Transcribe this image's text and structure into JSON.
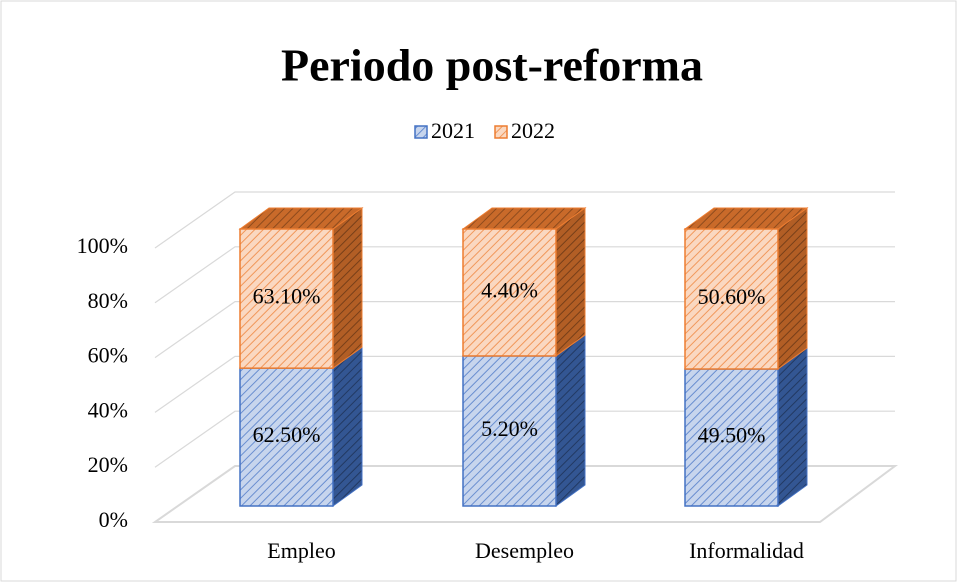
{
  "chart_data": {
    "type": "bar",
    "stacking": "percent",
    "title": "Periodo post-reforma",
    "categories": [
      "Empleo",
      "Desempleo",
      "Informalidad"
    ],
    "series": [
      {
        "name": "2021",
        "color": "#4472c4",
        "values": [
          62.5,
          5.2,
          49.5
        ],
        "value_labels": [
          "62.50%",
          "5.20%",
          "49.50%"
        ]
      },
      {
        "name": "2022",
        "color": "#ed7d31",
        "values": [
          63.1,
          4.4,
          50.6
        ],
        "value_labels": [
          "63.10%",
          "4.40%",
          "50.60%"
        ]
      }
    ],
    "ylim": [
      0,
      100
    ],
    "yticks": [
      {
        "value": 0,
        "label": "0%"
      },
      {
        "value": 20,
        "label": "20%"
      },
      {
        "value": 40,
        "label": "40%"
      },
      {
        "value": 60,
        "label": "60%"
      },
      {
        "value": 80,
        "label": "80%"
      },
      {
        "value": 100,
        "label": "100%"
      }
    ],
    "grid": true,
    "legend": "top"
  }
}
